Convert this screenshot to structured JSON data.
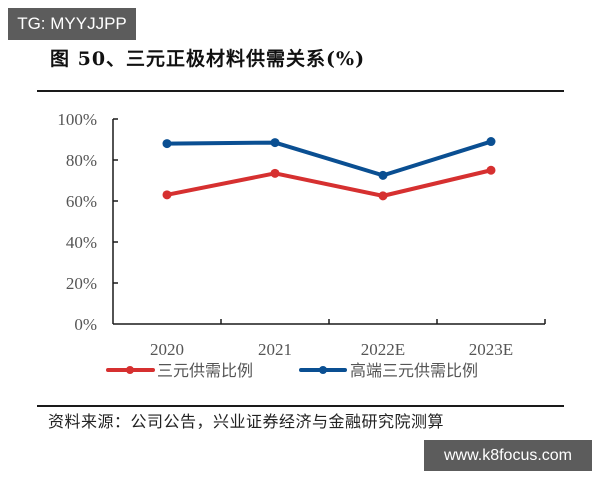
{
  "watermark_top": "TG: MYYJJPP",
  "watermark_bottom": "www.k8focus.com",
  "title": "图 50、三元正极材料供需关系(%)",
  "source": "资料来源：公司公告，兴业证券经济与金融研究院测算",
  "chart_data": {
    "type": "line",
    "title": "图 50、三元正极材料供需关系(%)",
    "xlabel": "",
    "ylabel": "",
    "categories": [
      "2020",
      "2021",
      "2022E",
      "2023E"
    ],
    "series": [
      {
        "name": "三元供需比例",
        "color": "#D63030",
        "values": [
          63,
          73.5,
          62.5,
          75
        ]
      },
      {
        "name": "高端三元供需比例",
        "color": "#0A4F92",
        "values": [
          88,
          88.5,
          72.5,
          89
        ]
      }
    ],
    "ylim": [
      0,
      100
    ],
    "yticks": [
      "0%",
      "20%",
      "40%",
      "60%",
      "80%",
      "100%"
    ],
    "grid": false,
    "legend_position": "bottom"
  }
}
